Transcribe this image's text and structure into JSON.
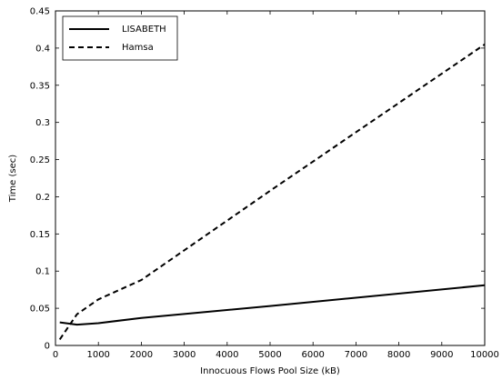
{
  "chart_data": {
    "type": "line",
    "xlabel": "Innocuous Flows Pool Size (kB)",
    "ylabel": "Time (sec)",
    "xlim": [
      0,
      10000
    ],
    "ylim": [
      0,
      0.45
    ],
    "xticks": [
      0,
      1000,
      2000,
      3000,
      4000,
      5000,
      6000,
      7000,
      8000,
      9000,
      10000
    ],
    "yticks": [
      0,
      0.05,
      0.1,
      0.15,
      0.2,
      0.25,
      0.3,
      0.35,
      0.4,
      0.45
    ],
    "xtick_labels": [
      "0",
      "1000",
      "2000",
      "3000",
      "4000",
      "5000",
      "6000",
      "7000",
      "8000",
      "9000",
      "10000"
    ],
    "ytick_labels": [
      "0",
      "0.05",
      "0.1",
      "0.15",
      "0.2",
      "0.25",
      "0.3",
      "0.35",
      "0.4",
      "0.45"
    ],
    "grid": false,
    "legend_position": "top-left",
    "series": [
      {
        "name": "LISABETH",
        "style": "solid",
        "color": "#000000",
        "x": [
          100,
          500,
          1000,
          2000,
          5000,
          10000
        ],
        "values": [
          0.031,
          0.028,
          0.03,
          0.037,
          0.053,
          0.081
        ]
      },
      {
        "name": "Hamsa",
        "style": "dashed",
        "color": "#000000",
        "x": [
          100,
          500,
          1000,
          2000,
          5000,
          10000
        ],
        "values": [
          0.008,
          0.042,
          0.062,
          0.088,
          0.208,
          0.405
        ]
      }
    ]
  }
}
